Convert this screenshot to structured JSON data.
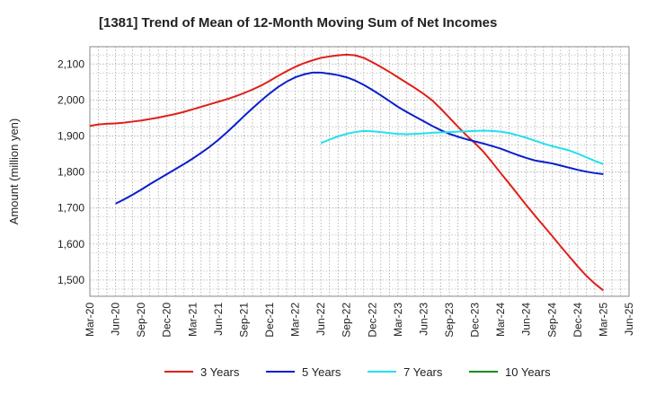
{
  "chart_data": {
    "type": "line",
    "title": "[1381]  Trend of Mean of 12-Month Moving Sum of Net Incomes",
    "ylabel": "Amount (million yen)",
    "xlabel": "",
    "x_tick_labels": [
      "Mar-20",
      "Jun-20",
      "Sep-20",
      "Dec-20",
      "Mar-21",
      "Jun-21",
      "Sep-21",
      "Dec-21",
      "Mar-22",
      "Jun-22",
      "Sep-22",
      "Dec-22",
      "Mar-23",
      "Jun-23",
      "Sep-23",
      "Dec-23",
      "Mar-24",
      "Jun-24",
      "Sep-24",
      "Dec-24",
      "Mar-25",
      "Jun-25"
    ],
    "y_ticks": [
      1500,
      1600,
      1700,
      1800,
      1900,
      2000,
      2100
    ],
    "y_tick_labels": [
      "1,500",
      "1,600",
      "1,700",
      "1,800",
      "1,900",
      "2,000",
      "2,100"
    ],
    "ylim": [
      1455,
      2148
    ],
    "grid": true,
    "legend_position": "bottom",
    "series": [
      {
        "name": "3 Years",
        "color": "#e0201b",
        "points": [
          [
            "Mar-20",
            1928
          ],
          [
            "Apr-20",
            1932
          ],
          [
            "May-20",
            1934
          ],
          [
            "Jun-20",
            1935
          ],
          [
            "Jul-20",
            1937
          ],
          [
            "Aug-20",
            1940
          ],
          [
            "Sep-20",
            1943
          ],
          [
            "Oct-20",
            1947
          ],
          [
            "Nov-20",
            1951
          ],
          [
            "Dec-20",
            1956
          ],
          [
            "Jan-21",
            1961
          ],
          [
            "Feb-21",
            1967
          ],
          [
            "Mar-21",
            1974
          ],
          [
            "Apr-21",
            1981
          ],
          [
            "May-21",
            1988
          ],
          [
            "Jun-21",
            1995
          ],
          [
            "Jul-21",
            2002
          ],
          [
            "Aug-21",
            2010
          ],
          [
            "Sep-21",
            2019
          ],
          [
            "Oct-21",
            2029
          ],
          [
            "Nov-21",
            2040
          ],
          [
            "Dec-21",
            2053
          ],
          [
            "Jan-22",
            2067
          ],
          [
            "Feb-22",
            2080
          ],
          [
            "Mar-22",
            2092
          ],
          [
            "Apr-22",
            2102
          ],
          [
            "May-22",
            2110
          ],
          [
            "Jun-22",
            2117
          ],
          [
            "Jul-22",
            2121
          ],
          [
            "Aug-22",
            2124
          ],
          [
            "Sep-22",
            2126
          ],
          [
            "Oct-22",
            2124
          ],
          [
            "Nov-22",
            2117
          ],
          [
            "Dec-22",
            2105
          ],
          [
            "Jan-23",
            2092
          ],
          [
            "Feb-23",
            2078
          ],
          [
            "Mar-23",
            2063
          ],
          [
            "Apr-23",
            2048
          ],
          [
            "May-23",
            2033
          ],
          [
            "Jun-23",
            2017
          ],
          [
            "Jul-23",
            1999
          ],
          [
            "Aug-23",
            1976
          ],
          [
            "Sep-23",
            1951
          ],
          [
            "Oct-23",
            1926
          ],
          [
            "Nov-23",
            1902
          ],
          [
            "Dec-23",
            1880
          ],
          [
            "Jan-24",
            1856
          ],
          [
            "Feb-24",
            1827
          ],
          [
            "Mar-24",
            1797
          ],
          [
            "Apr-24",
            1768
          ],
          [
            "May-24",
            1738
          ],
          [
            "Jun-24",
            1708
          ],
          [
            "Jul-24",
            1679
          ],
          [
            "Aug-24",
            1651
          ],
          [
            "Sep-24",
            1623
          ],
          [
            "Oct-24",
            1594
          ],
          [
            "Nov-24",
            1566
          ],
          [
            "Dec-24",
            1538
          ],
          [
            "Jan-25",
            1512
          ],
          [
            "Feb-25",
            1490
          ],
          [
            "Mar-25",
            1471
          ]
        ]
      },
      {
        "name": "5 Years",
        "color": "#0a1fcc",
        "points": [
          [
            "Jun-20",
            1712
          ],
          [
            "Jul-20",
            1724
          ],
          [
            "Aug-20",
            1737
          ],
          [
            "Sep-20",
            1751
          ],
          [
            "Oct-20",
            1766
          ],
          [
            "Nov-20",
            1780
          ],
          [
            "Dec-20",
            1794
          ],
          [
            "Jan-21",
            1808
          ],
          [
            "Feb-21",
            1822
          ],
          [
            "Mar-21",
            1837
          ],
          [
            "Apr-21",
            1853
          ],
          [
            "May-21",
            1870
          ],
          [
            "Jun-21",
            1889
          ],
          [
            "Jul-21",
            1910
          ],
          [
            "Aug-21",
            1932
          ],
          [
            "Sep-21",
            1955
          ],
          [
            "Oct-21",
            1977
          ],
          [
            "Nov-21",
            1998
          ],
          [
            "Dec-21",
            2018
          ],
          [
            "Jan-22",
            2036
          ],
          [
            "Feb-22",
            2051
          ],
          [
            "Mar-22",
            2063
          ],
          [
            "Apr-22",
            2071
          ],
          [
            "May-22",
            2076
          ],
          [
            "Jun-22",
            2076
          ],
          [
            "Jul-22",
            2073
          ],
          [
            "Aug-22",
            2069
          ],
          [
            "Sep-22",
            2063
          ],
          [
            "Oct-22",
            2054
          ],
          [
            "Nov-22",
            2042
          ],
          [
            "Dec-22",
            2028
          ],
          [
            "Jan-23",
            2013
          ],
          [
            "Feb-23",
            1997
          ],
          [
            "Mar-23",
            1981
          ],
          [
            "Apr-23",
            1967
          ],
          [
            "May-23",
            1954
          ],
          [
            "Jun-23",
            1941
          ],
          [
            "Jul-23",
            1928
          ],
          [
            "Aug-23",
            1916
          ],
          [
            "Sep-23",
            1906
          ],
          [
            "Oct-23",
            1898
          ],
          [
            "Nov-23",
            1891
          ],
          [
            "Dec-23",
            1885
          ],
          [
            "Jan-24",
            1879
          ],
          [
            "Feb-24",
            1872
          ],
          [
            "Mar-24",
            1865
          ],
          [
            "Apr-24",
            1856
          ],
          [
            "May-24",
            1847
          ],
          [
            "Jun-24",
            1839
          ],
          [
            "Jul-24",
            1832
          ],
          [
            "Aug-24",
            1828
          ],
          [
            "Sep-24",
            1824
          ],
          [
            "Oct-24",
            1818
          ],
          [
            "Nov-24",
            1812
          ],
          [
            "Dec-24",
            1806
          ],
          [
            "Jan-25",
            1801
          ],
          [
            "Feb-25",
            1797
          ],
          [
            "Mar-25",
            1794
          ]
        ]
      },
      {
        "name": "7 Years",
        "color": "#22e0ee",
        "points": [
          [
            "Jun-22",
            1880
          ],
          [
            "Jul-22",
            1890
          ],
          [
            "Aug-22",
            1899
          ],
          [
            "Sep-22",
            1906
          ],
          [
            "Oct-22",
            1911
          ],
          [
            "Nov-22",
            1914
          ],
          [
            "Dec-22",
            1913
          ],
          [
            "Jan-23",
            1911
          ],
          [
            "Feb-23",
            1908
          ],
          [
            "Mar-23",
            1906
          ],
          [
            "Apr-23",
            1905
          ],
          [
            "May-23",
            1906
          ],
          [
            "Jun-23",
            1907
          ],
          [
            "Jul-23",
            1909
          ],
          [
            "Aug-23",
            1910
          ],
          [
            "Sep-23",
            1911
          ],
          [
            "Oct-23",
            1912
          ],
          [
            "Nov-23",
            1913
          ],
          [
            "Dec-23",
            1914
          ],
          [
            "Jan-24",
            1915
          ],
          [
            "Feb-24",
            1914
          ],
          [
            "Mar-24",
            1912
          ],
          [
            "Apr-24",
            1908
          ],
          [
            "May-24",
            1902
          ],
          [
            "Jun-24",
            1895
          ],
          [
            "Jul-24",
            1887
          ],
          [
            "Aug-24",
            1879
          ],
          [
            "Sep-24",
            1872
          ],
          [
            "Oct-24",
            1866
          ],
          [
            "Nov-24",
            1860
          ],
          [
            "Dec-24",
            1851
          ],
          [
            "Jan-25",
            1841
          ],
          [
            "Feb-25",
            1831
          ],
          [
            "Mar-25",
            1822
          ]
        ]
      },
      {
        "name": "10 Years",
        "color": "#1a8a1a",
        "points": []
      }
    ]
  }
}
